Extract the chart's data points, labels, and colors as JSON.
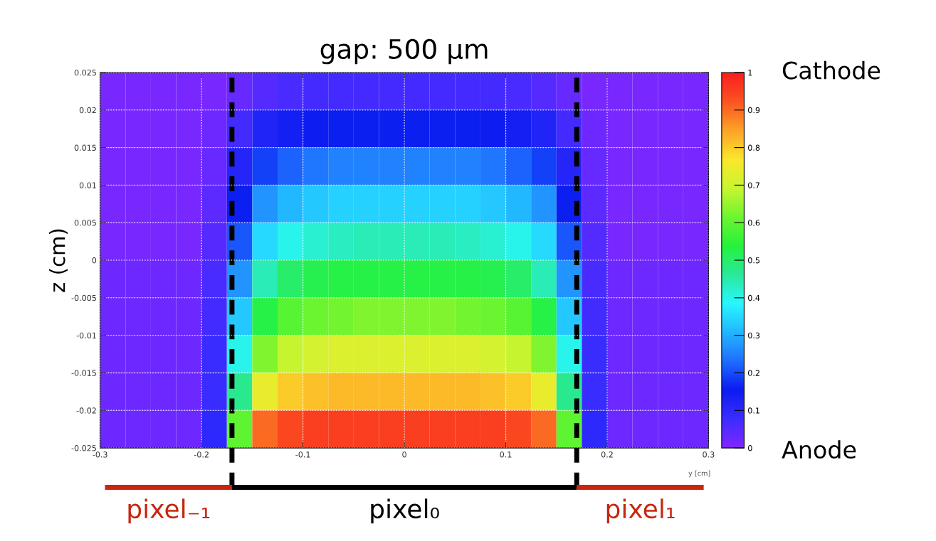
{
  "chart_data": {
    "type": "heatmap",
    "title": "gap: 500 μm",
    "xlabel": "y [cm]",
    "ylabel": "z (cm)",
    "x": [
      -0.2875,
      -0.2625,
      -0.2375,
      -0.2125,
      -0.1875,
      -0.1625,
      -0.1375,
      -0.1125,
      -0.0875,
      -0.0625,
      -0.0375,
      -0.0125,
      0.0125,
      0.0375,
      0.0625,
      0.0875,
      0.1125,
      0.1375,
      0.1625,
      0.1875,
      0.2125,
      0.2375,
      0.2625,
      0.2875
    ],
    "y": [
      0.0225,
      0.0175,
      0.0125,
      0.0075,
      0.0025,
      -0.0025,
      -0.0075,
      -0.0125,
      -0.0175,
      -0.0225
    ],
    "xlim": [
      -0.3,
      0.3
    ],
    "xticks": [
      -0.3,
      -0.2,
      -0.1,
      0,
      0.1,
      0.2,
      0.3
    ],
    "ylim": [
      -0.025,
      0.025
    ],
    "yticks": [
      -0.025,
      -0.02,
      -0.015,
      -0.01,
      -0.005,
      0,
      0.005,
      0.01,
      0.015,
      0.02,
      0.025
    ],
    "cells": [
      [
        0.01,
        0.01,
        0.01,
        0.01,
        0.01,
        0.03,
        0.05,
        0.06,
        0.07,
        0.07,
        0.07,
        0.07,
        0.07,
        0.07,
        0.07,
        0.07,
        0.06,
        0.05,
        0.03,
        0.01,
        0.01,
        0.01,
        0.01,
        0.01
      ],
      [
        0.01,
        0.01,
        0.01,
        0.01,
        0.02,
        0.07,
        0.12,
        0.14,
        0.15,
        0.16,
        0.16,
        0.16,
        0.16,
        0.16,
        0.16,
        0.15,
        0.14,
        0.12,
        0.07,
        0.02,
        0.01,
        0.01,
        0.01,
        0.01
      ],
      [
        0.01,
        0.01,
        0.01,
        0.01,
        0.03,
        0.11,
        0.19,
        0.22,
        0.24,
        0.25,
        0.25,
        0.25,
        0.25,
        0.25,
        0.25,
        0.24,
        0.22,
        0.19,
        0.11,
        0.03,
        0.01,
        0.01,
        0.01,
        0.01
      ],
      [
        0.01,
        0.01,
        0.01,
        0.01,
        0.04,
        0.16,
        0.27,
        0.31,
        0.33,
        0.34,
        0.34,
        0.34,
        0.34,
        0.34,
        0.34,
        0.33,
        0.31,
        0.27,
        0.16,
        0.04,
        0.01,
        0.01,
        0.01,
        0.01
      ],
      [
        0.01,
        0.01,
        0.01,
        0.01,
        0.05,
        0.21,
        0.35,
        0.4,
        0.42,
        0.43,
        0.44,
        0.44,
        0.44,
        0.44,
        0.43,
        0.42,
        0.4,
        0.35,
        0.21,
        0.05,
        0.01,
        0.01,
        0.01,
        0.01
      ],
      [
        0.02,
        0.02,
        0.02,
        0.02,
        0.06,
        0.27,
        0.44,
        0.5,
        0.52,
        0.53,
        0.53,
        0.53,
        0.53,
        0.53,
        0.53,
        0.52,
        0.5,
        0.44,
        0.27,
        0.06,
        0.02,
        0.02,
        0.02,
        0.02
      ],
      [
        0.02,
        0.02,
        0.02,
        0.02,
        0.07,
        0.33,
        0.53,
        0.59,
        0.61,
        0.62,
        0.63,
        0.63,
        0.63,
        0.63,
        0.62,
        0.61,
        0.59,
        0.53,
        0.33,
        0.07,
        0.02,
        0.02,
        0.02,
        0.02
      ],
      [
        0.02,
        0.02,
        0.02,
        0.02,
        0.08,
        0.4,
        0.63,
        0.69,
        0.71,
        0.72,
        0.72,
        0.72,
        0.72,
        0.72,
        0.72,
        0.71,
        0.69,
        0.63,
        0.4,
        0.08,
        0.02,
        0.02,
        0.02,
        0.02
      ],
      [
        0.02,
        0.02,
        0.02,
        0.02,
        0.08,
        0.47,
        0.74,
        0.8,
        0.81,
        0.82,
        0.82,
        0.82,
        0.82,
        0.82,
        0.82,
        0.81,
        0.8,
        0.74,
        0.47,
        0.08,
        0.02,
        0.02,
        0.02,
        0.02
      ],
      [
        0.02,
        0.02,
        0.02,
        0.02,
        0.1,
        0.6,
        0.9,
        0.94,
        0.95,
        0.95,
        0.95,
        0.95,
        0.95,
        0.95,
        0.95,
        0.95,
        0.94,
        0.9,
        0.6,
        0.1,
        0.02,
        0.02,
        0.02,
        0.02
      ]
    ],
    "clim": [
      0,
      1
    ],
    "cticks": [
      0,
      0.1,
      0.2,
      0.3,
      0.4,
      0.5,
      0.6,
      0.7,
      0.8,
      0.9,
      1
    ],
    "colors": [
      "#7f27ff",
      "#3a2cff",
      "#0a1cf0",
      "#1f6fff",
      "#22b6ff",
      "#28f7ff",
      "#2ae89a",
      "#25f23b",
      "#6df52f",
      "#c8f530",
      "#fbe72b",
      "#fca327",
      "#fb5421",
      "#f91e1e"
    ],
    "grid": true,
    "line_style": "dotted",
    "ref_lines": [
      {
        "axis": "x",
        "value": -0.17,
        "color": "#000000",
        "line_style": "dashed"
      },
      {
        "axis": "x",
        "value": 0.17,
        "color": "#000000",
        "line_style": "dashed"
      }
    ],
    "annotations": [
      "Cathode",
      "Anode",
      "pixel₋₁",
      "pixel₀",
      "pixel₁"
    ]
  }
}
